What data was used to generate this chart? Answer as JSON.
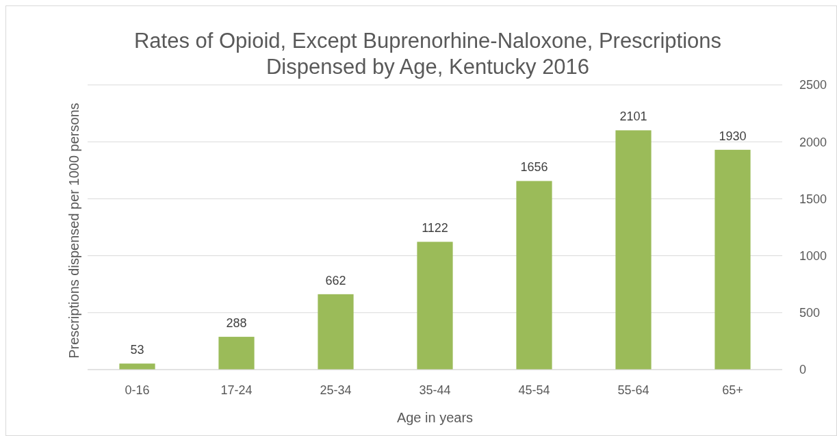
{
  "chart_data": {
    "type": "bar",
    "title": "Rates of Opioid, Except Buprenorhine-Naloxone, Prescriptions Dispensed by Age, Kentucky 2016",
    "xlabel": "Age in years",
    "ylabel": "Prescriptions dispensed per 1000 persons",
    "categories": [
      "0-16",
      "17-24",
      "25-34",
      "35-44",
      "45-54",
      "55-64",
      "65+"
    ],
    "values": [
      53,
      288,
      662,
      1122,
      1656,
      2101,
      1930
    ],
    "color": "#9bbb59",
    "ylim": [
      0,
      2500
    ],
    "yticks": [
      0,
      500,
      1000,
      1500,
      2000,
      2500
    ],
    "grid": "y",
    "data_labels": true
  }
}
